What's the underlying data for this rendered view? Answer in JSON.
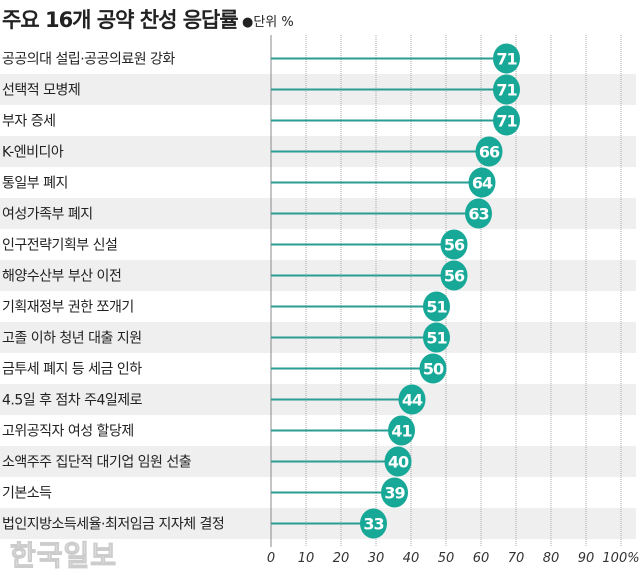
{
  "chart_data": {
    "type": "bar",
    "title": "주요 16개 공약 찬성 응답률",
    "unit_label": "●단위 %",
    "categories": [
      "공공의대 설립·공공의료원 강화",
      "선택적 모병제",
      "부자 증세",
      "K-엔비디아",
      "통일부 폐지",
      "여성가족부 폐지",
      "인구전략기획부 신설",
      "해양수산부 부산 이전",
      "기획재정부 권한 쪼개기",
      "고졸 이하 청년 대출 지원",
      "금투세 폐지 등 세금 인하",
      "4.5일 후 점차 주4일제로",
      "고위공직자 여성 할당제",
      "소액주주 집단적 대기업 임원 선출",
      "기본소득",
      "법인지방소득세율·최저임금 지자체 결정"
    ],
    "values": [
      71,
      71,
      71,
      66,
      64,
      63,
      56,
      56,
      51,
      51,
      50,
      44,
      41,
      40,
      39,
      33
    ],
    "x_ticks": [
      "0",
      "10",
      "20",
      "30",
      "40",
      "50",
      "60",
      "70",
      "80",
      "90",
      "100%"
    ],
    "xlim": [
      0,
      100
    ],
    "grid": true,
    "colors": {
      "marker": "#18a898",
      "line": "#2a9d94",
      "row_shade": "#efefef"
    }
  },
  "watermark": "한국일보"
}
